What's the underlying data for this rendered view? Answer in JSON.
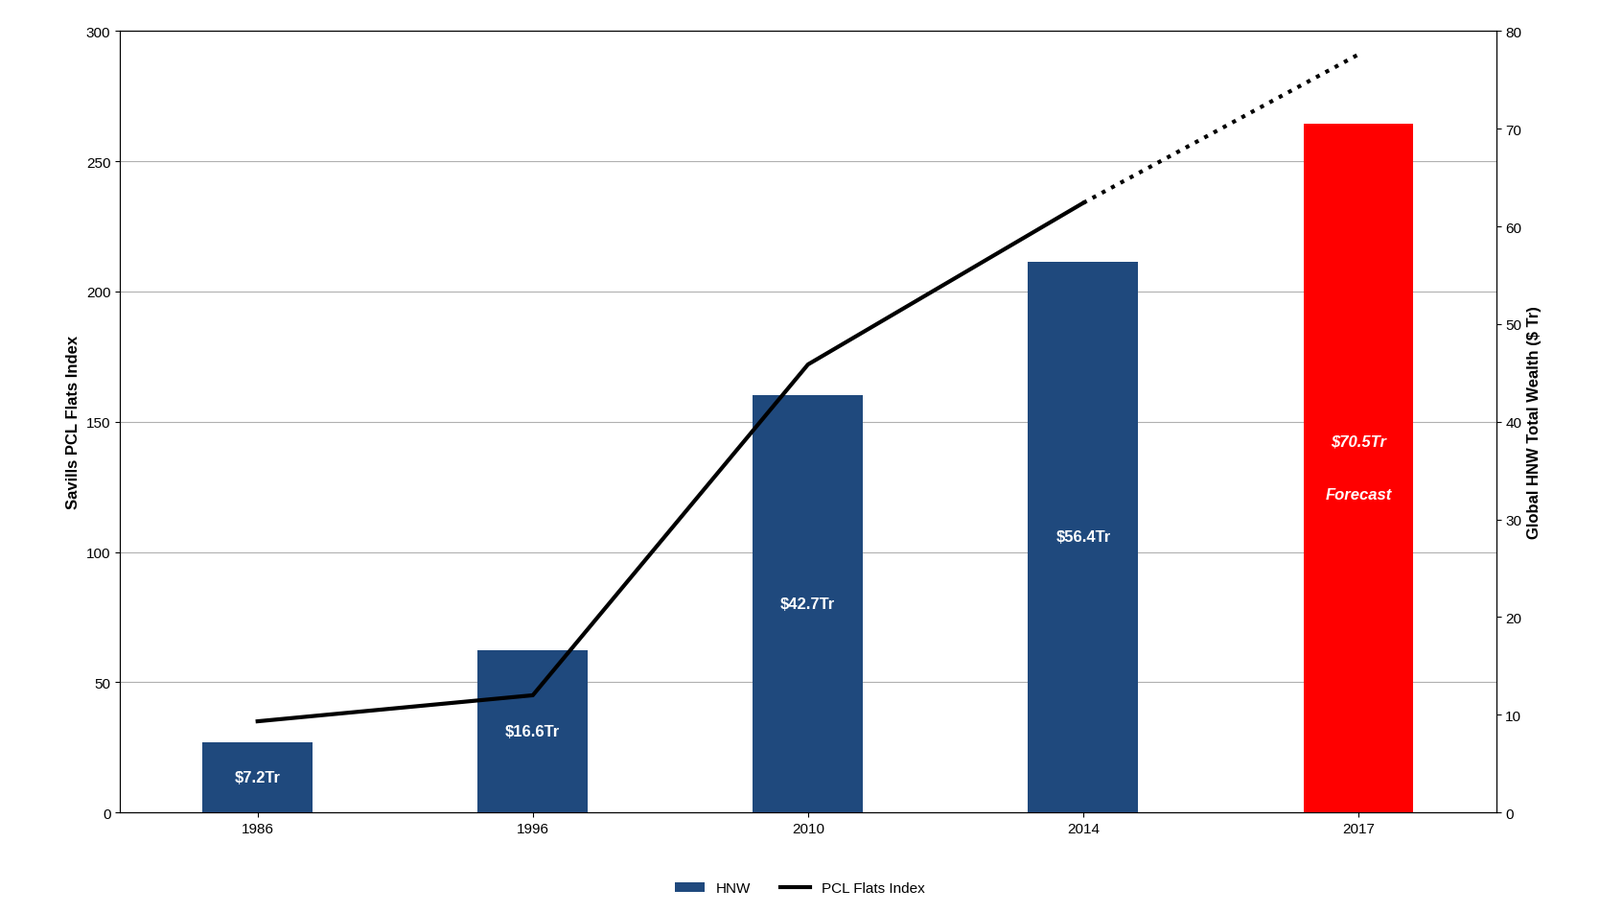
{
  "chart_data": {
    "type": "bar",
    "categories": [
      "1986",
      "1996",
      "2010",
      "2014",
      "2017"
    ],
    "series": [
      {
        "name": "HNW",
        "type": "bar",
        "axis": "y2",
        "values": [
          7.2,
          16.6,
          42.7,
          56.4,
          70.5
        ],
        "value_labels": [
          "$7.2Tr",
          "$16.6Tr",
          "$42.7Tr",
          "$56.4Tr",
          "$70.5Tr"
        ],
        "colors": [
          "#1f497d",
          "#1f497d",
          "#1f497d",
          "#1f497d",
          "#ff0000"
        ],
        "data_labels": true
      },
      {
        "name": "PCL Flats Index",
        "type": "line",
        "axis": "y",
        "color": "#000000",
        "line_style": "solid",
        "values": [
          35,
          45,
          172,
          234,
          291
        ]
      }
    ],
    "annotations": [
      {
        "category": "2017",
        "text": "Forecast"
      }
    ],
    "y_label": "Savills PCL Flats Index",
    "y2_label": "Global HNW Total Wealth ($ Tr)",
    "ylim": [
      0,
      300
    ],
    "yticks": [
      0,
      50,
      100,
      150,
      200,
      250,
      300
    ],
    "y2lim": [
      0,
      80
    ],
    "y2ticks": [
      0,
      10,
      20,
      30,
      40,
      50,
      60,
      70,
      80
    ],
    "grid": true,
    "legend": "lower center"
  }
}
